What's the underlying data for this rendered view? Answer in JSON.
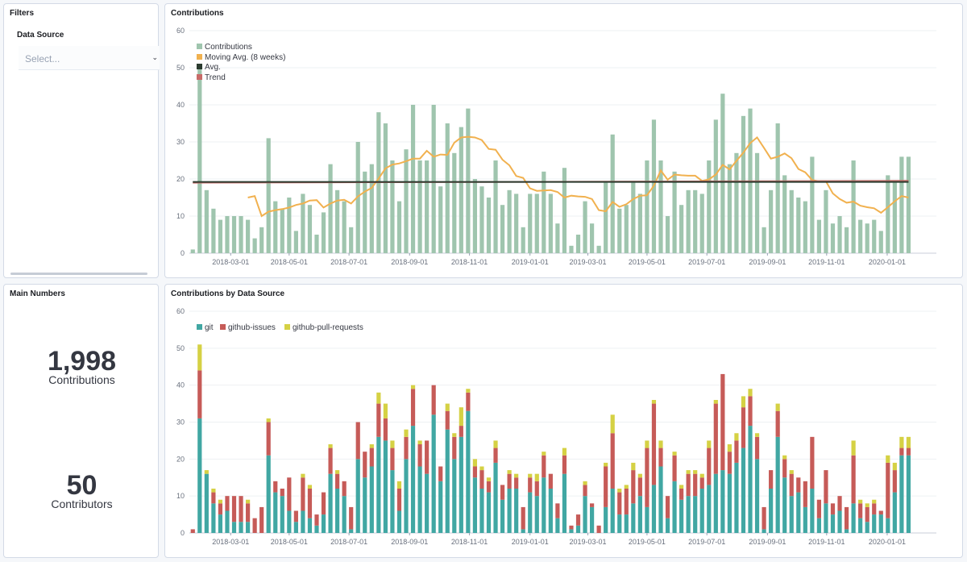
{
  "filters": {
    "title": "Filters",
    "data_source_label": "Data Source",
    "select_placeholder": "Select..."
  },
  "main_numbers": {
    "title": "Main Numbers",
    "contributions": {
      "value": "1,998",
      "label": "Contributions"
    },
    "contributors": {
      "value": "50",
      "label": "Contributors"
    }
  },
  "charts": {
    "contributions_title": "Contributions",
    "by_source_title": "Contributions by Data Source"
  },
  "colors": {
    "contributions": "#9fc5ae",
    "moving_avg": "#f1b14f",
    "avg": "#2b3b2f",
    "trend": "#c86b68",
    "git": "#41a7a3",
    "github_issues": "#c65b58",
    "github_pull_requests": "#d5d144"
  },
  "chart_data": [
    {
      "type": "bar",
      "title": "Contributions",
      "ylim": [
        0,
        60
      ],
      "yticks": [
        0,
        10,
        20,
        30,
        40,
        50,
        60
      ],
      "xticks": [
        "2018-03-01",
        "2018-05-01",
        "2018-07-01",
        "2018-09-01",
        "2018-11-01",
        "2019-01-01",
        "2019-03-01",
        "2019-05-01",
        "2019-07-01",
        "2019-09-01",
        "2019-11-01",
        "2020-01-01"
      ],
      "xtick_weeks": [
        6,
        14.5,
        23.2,
        32,
        40.7,
        49.5,
        57.9,
        66.5,
        75.2,
        84,
        92.6,
        101.4
      ],
      "legend": [
        "Contributions",
        "Moving Avg. (8 weeks)",
        "Avg.",
        "Trend"
      ],
      "values": [
        1,
        51,
        17,
        12,
        9,
        10,
        10,
        10,
        9,
        4,
        7,
        31,
        14,
        12,
        15,
        6,
        16,
        13,
        5,
        11,
        24,
        17,
        14,
        7,
        30,
        22,
        24,
        38,
        35,
        25,
        14,
        28,
        40,
        25,
        25,
        40,
        18,
        35,
        27,
        34,
        39,
        20,
        18,
        15,
        25,
        13,
        17,
        16,
        7,
        16,
        16,
        22,
        16,
        8,
        23,
        2,
        5,
        14,
        8,
        2,
        19,
        32,
        12,
        13,
        19,
        16,
        25,
        36,
        25,
        10,
        22,
        13,
        17,
        17,
        16,
        25,
        36,
        43,
        24,
        27,
        37,
        39,
        27,
        7,
        17,
        35,
        21,
        17,
        15,
        14,
        26,
        9,
        17,
        8,
        10,
        7,
        25,
        9,
        8,
        9,
        6,
        21,
        19,
        26,
        26
      ],
      "moving_avg": [
        null,
        null,
        null,
        null,
        null,
        null,
        null,
        null,
        15,
        15.4,
        10,
        11.2,
        11.6,
        11.9,
        12.3,
        13,
        13.4,
        14.2,
        14.3,
        12.3,
        13.4,
        14.2,
        14.4,
        13.4,
        15.3,
        16.6,
        17.6,
        20.1,
        22.9,
        23.9,
        24.2,
        24.8,
        25.5,
        25.5,
        27.6,
        26,
        26.6,
        26.5,
        29.8,
        31.2,
        31.4,
        31.2,
        30.5,
        28.1,
        27.9,
        25.2,
        23.7,
        20.8,
        20.3,
        17.5,
        16.8,
        16.9,
        17,
        16.5,
        15,
        15.5,
        15.3,
        15.2,
        14.6,
        11.6,
        11.3,
        13.8,
        12.5,
        13.2,
        14.6,
        15.5,
        15.6,
        18.2,
        22.3,
        19.8,
        21.2,
        21,
        20.9,
        20.9,
        19.5,
        19.9,
        21.2,
        23.8,
        22.6,
        24.9,
        27.1,
        29.7,
        31.2,
        28.4,
        25.5,
        26,
        26.9,
        25.6,
        22.7,
        21.8,
        19.7,
        19.4,
        19.4,
        16.1,
        14.6,
        13.6,
        13.9,
        12.8,
        12.4,
        12.1,
        10.9,
        12.4,
        14,
        15.4,
        15
      ],
      "avg": 19.2,
      "trend": [
        19,
        19.5
      ]
    },
    {
      "type": "bar",
      "title": "Contributions by Data Source",
      "ylim": [
        0,
        60
      ],
      "yticks": [
        0,
        10,
        20,
        30,
        40,
        50,
        60
      ],
      "xticks": [
        "2018-03-01",
        "2018-05-01",
        "2018-07-01",
        "2018-09-01",
        "2018-11-01",
        "2019-01-01",
        "2019-03-01",
        "2019-05-01",
        "2019-07-01",
        "2019-09-01",
        "2019-11-01",
        "2020-01-01"
      ],
      "xtick_weeks": [
        6,
        14.5,
        23.2,
        32,
        40.7,
        49.5,
        57.9,
        66.5,
        75.2,
        84,
        92.6,
        101.4
      ],
      "legend": [
        "git",
        "github-issues",
        "github-pull-requests"
      ],
      "series": [
        {
          "name": "git",
          "values": [
            0,
            31,
            16,
            8,
            5,
            6,
            3,
            3,
            3,
            0,
            0,
            21,
            11,
            10,
            6,
            3,
            6,
            4,
            2,
            5,
            16,
            12,
            10,
            1,
            20,
            15,
            18,
            26,
            25,
            17,
            6,
            20,
            29,
            18,
            16,
            32,
            14,
            28,
            20,
            26,
            33,
            15,
            12,
            11,
            19,
            9,
            12,
            12,
            1,
            11,
            10,
            15,
            12,
            4,
            16,
            1,
            2,
            10,
            7,
            0,
            7,
            12,
            5,
            5,
            8,
            10,
            7,
            13,
            18,
            4,
            14,
            9,
            10,
            10,
            12,
            13,
            16,
            17,
            16,
            19,
            23,
            29,
            20,
            1,
            12,
            26,
            15,
            10,
            11,
            7,
            12,
            4,
            8,
            5,
            6,
            1,
            8,
            4,
            3,
            5,
            5,
            4,
            11,
            21,
            21
          ]
        },
        {
          "name": "github-issues",
          "values": [
            1,
            13,
            0,
            3,
            3,
            4,
            7,
            7,
            5,
            4,
            7,
            9,
            3,
            2,
            9,
            3,
            9,
            8,
            3,
            6,
            7,
            4,
            4,
            6,
            10,
            7,
            5,
            9,
            6,
            6,
            6,
            6,
            10,
            6,
            9,
            8,
            4,
            5,
            6,
            3,
            5,
            3,
            5,
            3,
            4,
            4,
            4,
            3,
            6,
            4,
            4,
            6,
            4,
            4,
            5,
            1,
            3,
            3,
            1,
            2,
            11,
            15,
            6,
            7,
            9,
            5,
            16,
            22,
            5,
            6,
            7,
            3,
            6,
            6,
            3,
            10,
            19,
            26,
            6,
            6,
            11,
            8,
            6,
            6,
            5,
            7,
            5,
            6,
            4,
            7,
            14,
            5,
            9,
            3,
            4,
            6,
            13,
            4,
            4,
            3,
            1,
            15,
            6,
            2,
            2
          ]
        },
        {
          "name": "github-pull-requests",
          "values": [
            0,
            7,
            1,
            1,
            1,
            0,
            0,
            0,
            1,
            0,
            0,
            1,
            0,
            0,
            0,
            0,
            1,
            1,
            0,
            0,
            1,
            1,
            0,
            0,
            0,
            0,
            1,
            3,
            4,
            2,
            2,
            2,
            1,
            1,
            0,
            0,
            0,
            2,
            1,
            5,
            1,
            2,
            1,
            1,
            2,
            0,
            1,
            1,
            0,
            1,
            2,
            1,
            0,
            0,
            2,
            0,
            0,
            1,
            0,
            0,
            1,
            5,
            1,
            1,
            2,
            1,
            2,
            1,
            2,
            0,
            1,
            1,
            1,
            1,
            1,
            2,
            1,
            0,
            2,
            2,
            3,
            2,
            1,
            0,
            0,
            2,
            1,
            1,
            0,
            0,
            0,
            0,
            0,
            0,
            0,
            0,
            4,
            1,
            1,
            1,
            0,
            2,
            2,
            3,
            3
          ]
        }
      ]
    }
  ]
}
